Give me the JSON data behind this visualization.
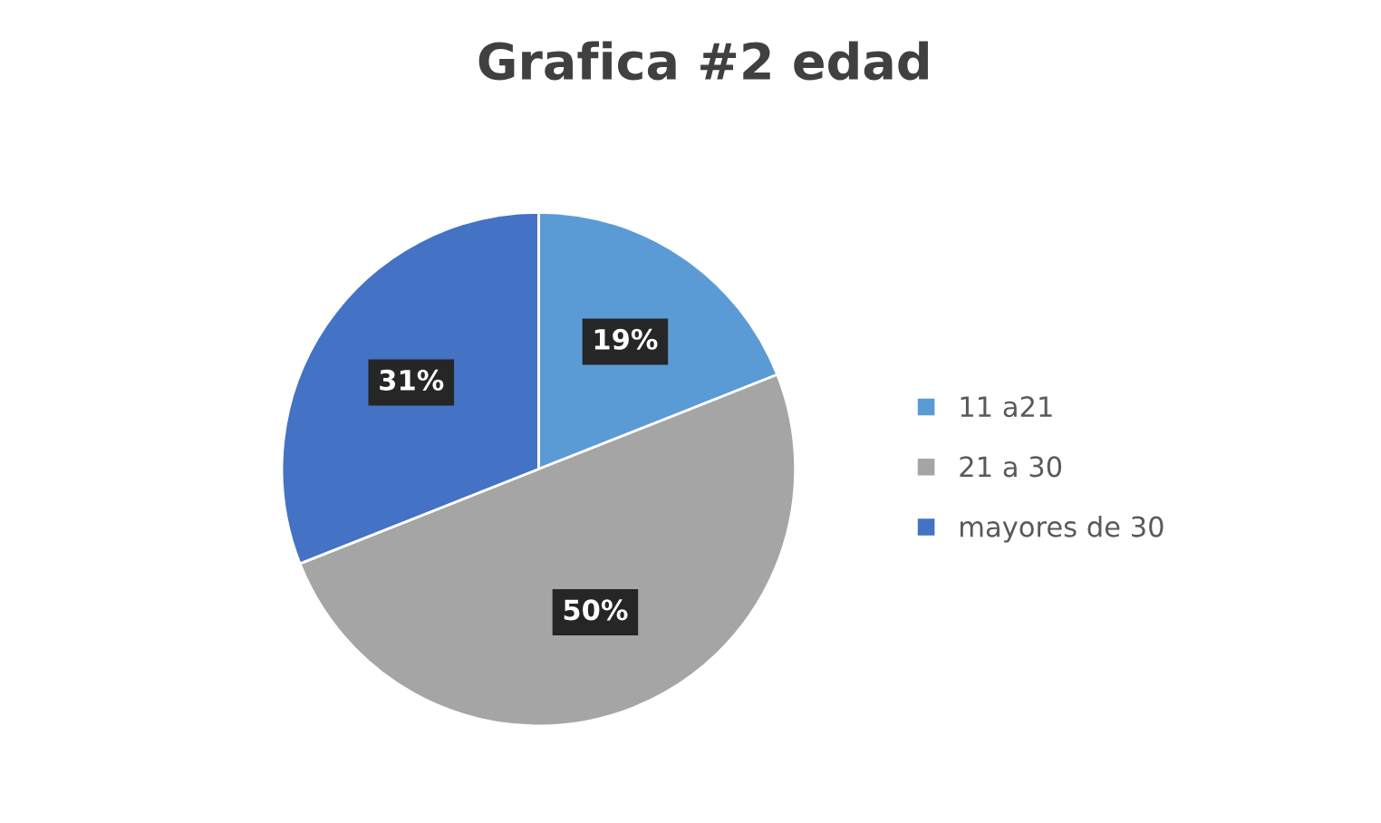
{
  "chart_data": {
    "type": "pie",
    "title": "Grafica #2 edad",
    "categories": [
      "11 a21",
      "21 a 30",
      "mayores de 30"
    ],
    "values": [
      19,
      50,
      31
    ],
    "colors": [
      "#5b9bd5",
      "#a5a5a5",
      "#4472c4"
    ],
    "value_labels": [
      "19%",
      "50%",
      "31%"
    ],
    "legend": "right"
  }
}
